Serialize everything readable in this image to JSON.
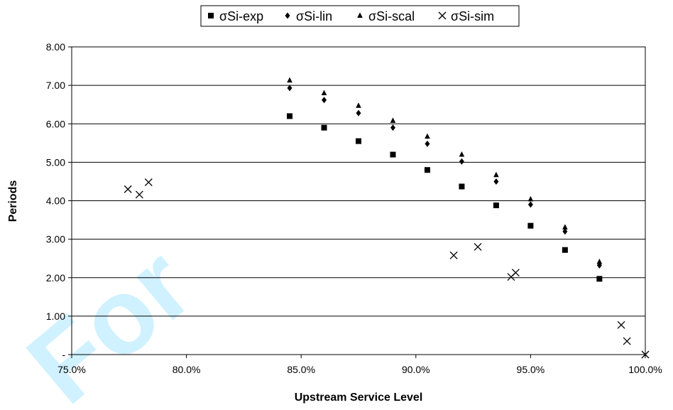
{
  "chart_data": {
    "type": "scatter",
    "title": "",
    "xlabel": "Upstream Service Level",
    "ylabel": "Periods",
    "xlim": [
      0.75,
      1.0
    ],
    "ylim": [
      0,
      8
    ],
    "x_ticks": [
      "75.0%",
      "80.0%",
      "85.0%",
      "90.0%",
      "95.0%",
      "100.0%"
    ],
    "y_ticks": [
      "-",
      "1.00",
      "2.00",
      "3.00",
      "4.00",
      "5.00",
      "6.00",
      "7.00",
      "8.00"
    ],
    "grid": "horizontal",
    "legend_position": "top",
    "series": [
      {
        "name": "σSi-exp",
        "marker": "square",
        "points": [
          [
            0.845,
            6.2
          ],
          [
            0.86,
            5.9
          ],
          [
            0.875,
            5.55
          ],
          [
            0.89,
            5.2
          ],
          [
            0.905,
            4.8
          ],
          [
            0.92,
            4.37
          ],
          [
            0.935,
            3.88
          ],
          [
            0.95,
            3.35
          ],
          [
            0.965,
            2.72
          ],
          [
            0.98,
            1.97
          ]
        ]
      },
      {
        "name": "σSi-lin",
        "marker": "diamond",
        "points": [
          [
            0.845,
            6.93
          ],
          [
            0.86,
            6.62
          ],
          [
            0.875,
            6.28
          ],
          [
            0.89,
            5.9
          ],
          [
            0.905,
            5.48
          ],
          [
            0.92,
            5.02
          ],
          [
            0.935,
            4.5
          ],
          [
            0.95,
            3.9
          ],
          [
            0.965,
            3.2
          ],
          [
            0.98,
            2.32
          ]
        ]
      },
      {
        "name": "σSi-scal",
        "marker": "triangle",
        "points": [
          [
            0.845,
            7.13
          ],
          [
            0.86,
            6.8
          ],
          [
            0.875,
            6.47
          ],
          [
            0.89,
            6.08
          ],
          [
            0.905,
            5.67
          ],
          [
            0.92,
            5.2
          ],
          [
            0.935,
            4.67
          ],
          [
            0.95,
            4.04
          ],
          [
            0.965,
            3.31
          ],
          [
            0.98,
            2.41
          ]
        ]
      },
      {
        "name": "σSi-sim",
        "marker": "x",
        "points": [
          [
            0.7745,
            4.3
          ],
          [
            0.7795,
            4.16
          ],
          [
            0.7835,
            4.48
          ],
          [
            0.9165,
            2.58
          ],
          [
            0.927,
            2.8
          ],
          [
            0.9415,
            2.02
          ],
          [
            0.9435,
            2.13
          ],
          [
            0.9895,
            0.77
          ],
          [
            0.992,
            0.35
          ],
          [
            1.0,
            0.0
          ]
        ]
      }
    ]
  },
  "watermark": {
    "text": "For",
    "color": "#00b7ff"
  }
}
